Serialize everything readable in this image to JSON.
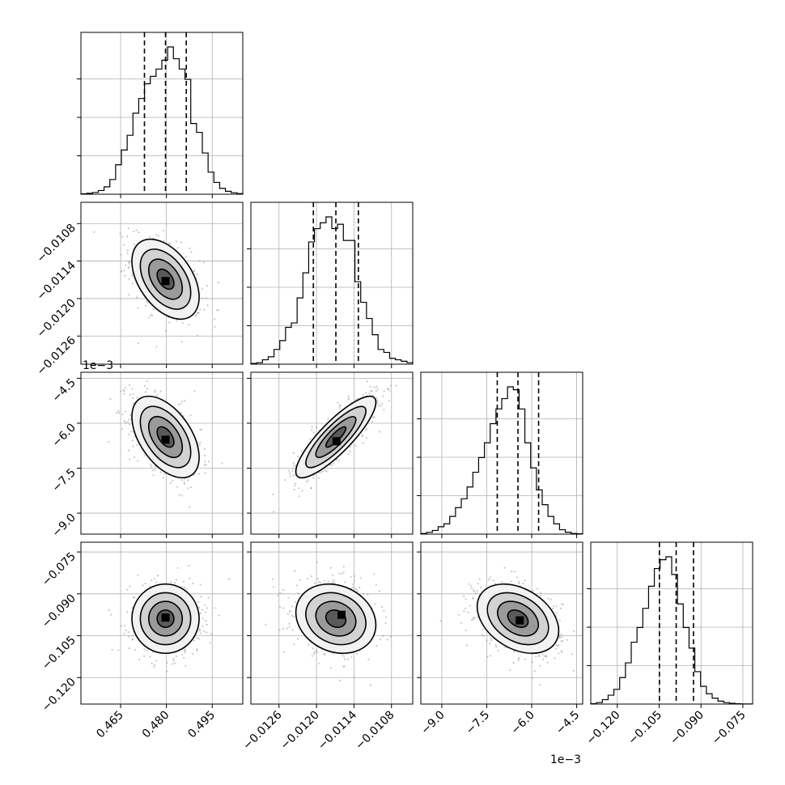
{
  "chart_data": {
    "type": "corner",
    "title": "",
    "parameters": [
      {
        "index": 0,
        "range": [
          0.452,
          0.505
        ],
        "ticks": [
          0.465,
          0.48,
          0.495
        ],
        "tick_labels": [
          "0.465",
          "0.480",
          "0.495"
        ],
        "offset_label": "",
        "quantiles": [
          0.4728,
          0.4797,
          0.4865
        ],
        "hist_bins": [
          0.3,
          0.6,
          1.2,
          2.5,
          5,
          10,
          20,
          30,
          40,
          55,
          65,
          75,
          80,
          85,
          91,
          100,
          92,
          85,
          78,
          48,
          42,
          28,
          15,
          8,
          4,
          2,
          1,
          0.4
        ]
      },
      {
        "index": 1,
        "range": [
          -0.01305,
          -0.01046
        ],
        "ticks": [
          -0.0126,
          -0.012,
          -0.0114,
          -0.0108
        ],
        "tick_labels": [
          "−0.0126",
          "−0.0120",
          "−0.0114",
          "−0.0108"
        ],
        "offset_label": "",
        "quantiles": [
          -0.01205,
          -0.01169,
          -0.01133
        ],
        "hist_bins": [
          0.5,
          1,
          3,
          5,
          10,
          16,
          25,
          28,
          45,
          62,
          83,
          92,
          96,
          100,
          92,
          95,
          84,
          84,
          56,
          42,
          31,
          20,
          10,
          8,
          4,
          3,
          2,
          1
        ]
      },
      {
        "index": 2,
        "range": [
          -0.0097,
          -0.0043
        ],
        "ticks": [
          -0.009,
          -0.0075,
          -0.006,
          -0.0045
        ],
        "tick_labels": [
          "−9.0",
          "−7.5",
          "−6.0",
          "−4.5"
        ],
        "offset_label": "1e−3",
        "quantiles": [
          -0.00715,
          -0.00646,
          -0.00577
        ],
        "hist_bins": [
          0.4,
          1.2,
          2.5,
          5,
          7,
          12,
          18,
          24,
          32,
          42,
          52,
          62,
          75,
          85,
          92,
          100,
          98,
          85,
          62,
          45,
          30,
          20,
          12,
          7,
          3,
          1.3,
          0.4,
          0.2
        ]
      },
      {
        "index": 3,
        "range": [
          -0.1295,
          -0.0715
        ],
        "ticks": [
          -0.12,
          -0.105,
          -0.09,
          -0.075
        ],
        "tick_labels": [
          "−0.120",
          "−0.105",
          "−0.090",
          "−0.075"
        ],
        "offset_label": "",
        "quantiles": [
          -0.1049,
          -0.0989,
          -0.0927
        ],
        "hist_bins": [
          0.3,
          1,
          3,
          6,
          10,
          18,
          28,
          42,
          52,
          65,
          80,
          92,
          98,
          100,
          88,
          68,
          52,
          38,
          22,
          12,
          7,
          4,
          2,
          1,
          0.5,
          0.2,
          0.1,
          0.05
        ]
      }
    ],
    "pairs": [
      {
        "row": 1,
        "col": 0,
        "center": [
          0.4797,
          -0.01169
        ],
        "sigma": [
          0.0055,
          0.00032
        ],
        "rho": -0.45,
        "peak": [
          0.4797,
          -0.01172
        ]
      },
      {
        "row": 2,
        "col": 0,
        "center": [
          0.4797,
          -0.00646
        ],
        "sigma": [
          0.0055,
          0.00068
        ],
        "rho": -0.5,
        "peak": [
          0.4797,
          -0.00655
        ]
      },
      {
        "row": 2,
        "col": 1,
        "center": [
          -0.01169,
          -0.00646
        ],
        "sigma": [
          0.00032,
          0.00068
        ],
        "rho": 0.85,
        "peak": [
          -0.01168,
          -0.0066
        ]
      },
      {
        "row": 3,
        "col": 0,
        "center": [
          0.4797,
          -0.0989
        ],
        "sigma": [
          0.0055,
          0.0062
        ],
        "rho": 0.0,
        "peak": [
          0.4797,
          -0.0985
        ]
      },
      {
        "row": 3,
        "col": 1,
        "center": [
          -0.01169,
          -0.0989
        ],
        "sigma": [
          0.00032,
          0.0062
        ],
        "rho": -0.18,
        "peak": [
          -0.0116,
          -0.0975
        ]
      },
      {
        "row": 3,
        "col": 2,
        "center": [
          -0.00646,
          -0.0989
        ],
        "sigma": [
          0.00068,
          0.0062
        ],
        "rho": -0.35,
        "peak": [
          -0.0064,
          -0.0995
        ]
      }
    ],
    "contour_levels_sigma": [
      0.5,
      1.0,
      1.5,
      2.0
    ],
    "grid": true,
    "legend": "none",
    "xlabel": "",
    "ylabel": ""
  }
}
